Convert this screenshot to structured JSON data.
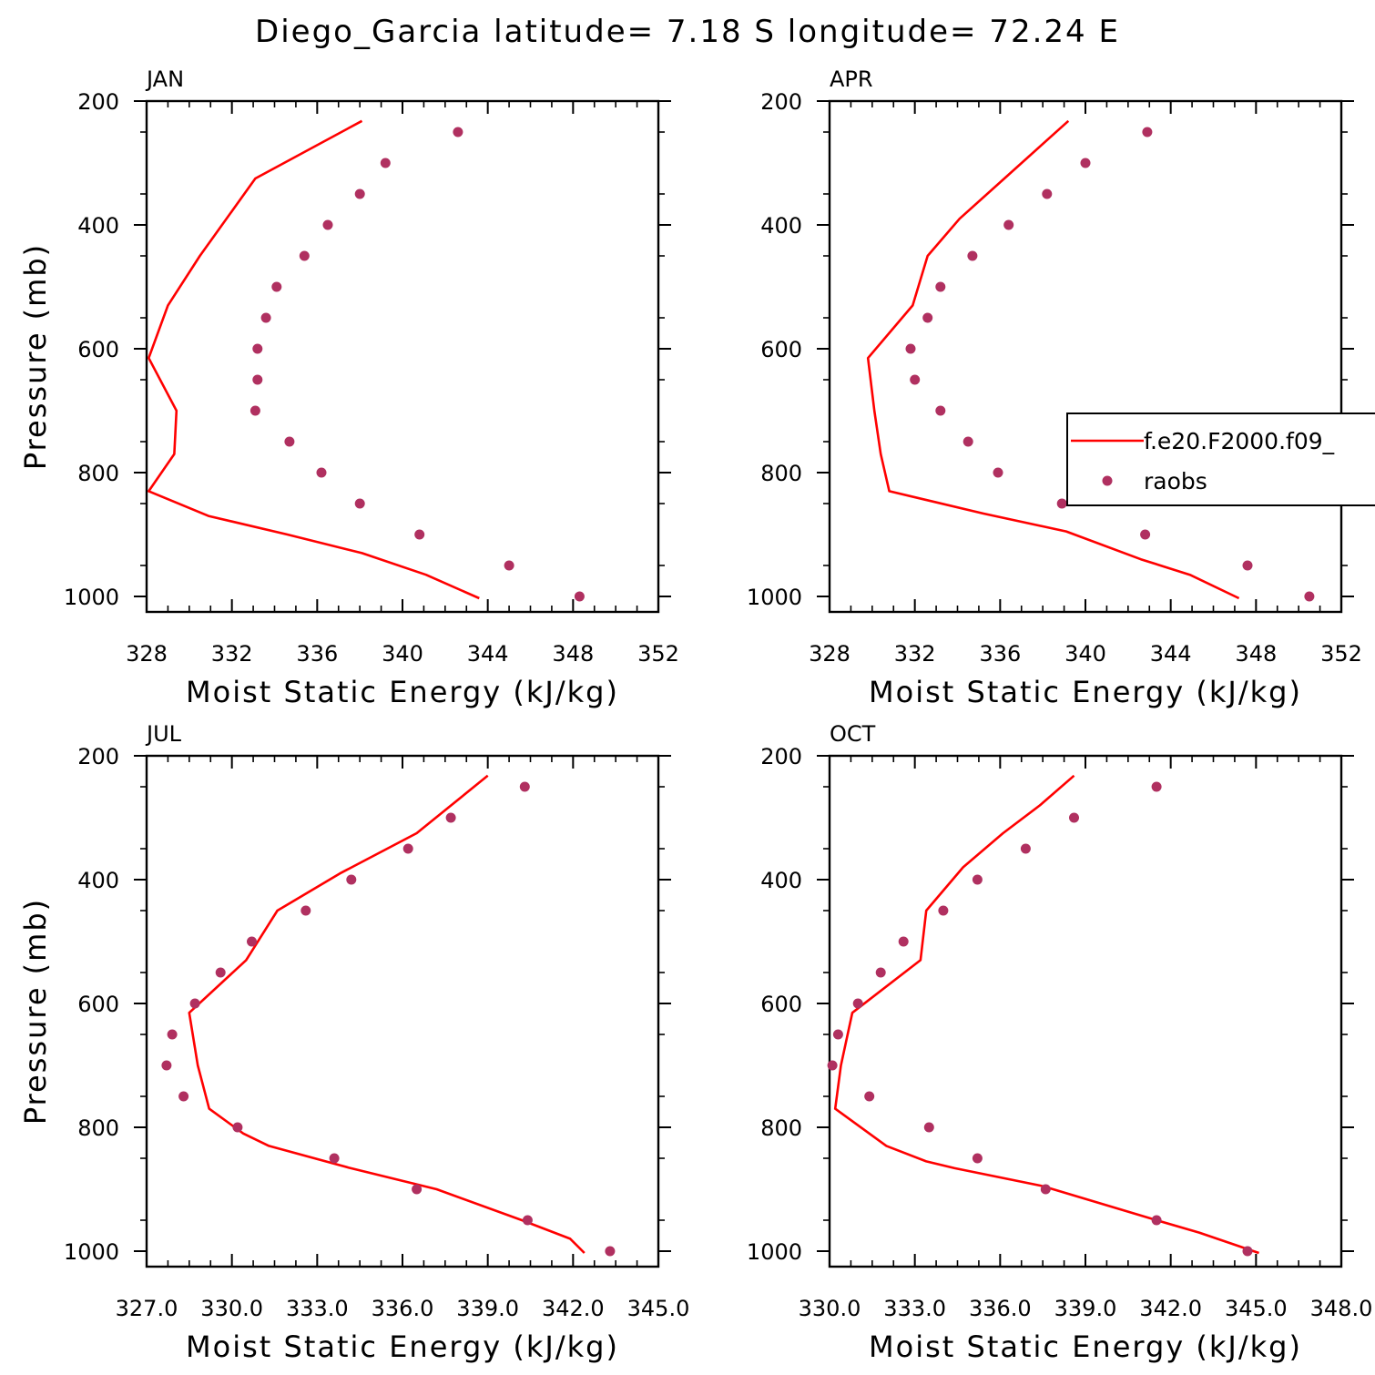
{
  "title": "Diego_Garcia  latitude= 7.18 S longitude= 72.24 E",
  "colors": {
    "model_line": "#ff0000",
    "obs_marker": "#b03060",
    "axis": "#000000"
  },
  "legend": {
    "placement": "right-middle of top-right panel (partially clipped)",
    "entries": [
      {
        "label": "f.e20.F2000.f09_",
        "kind": "line",
        "color": "#ff0000"
      },
      {
        "label": "raobs",
        "kind": "marker",
        "color": "#b03060"
      }
    ]
  },
  "chart_data": [
    {
      "type": "line+scatter",
      "title": "JAN",
      "xlabel": "Moist Static Energy (kJ/kg)",
      "ylabel": "Pressure (mb)",
      "xlim": [
        328,
        352
      ],
      "ylim": [
        200,
        1025
      ],
      "y_inverted": true,
      "xticks": [
        328,
        332,
        336,
        340,
        344,
        348,
        352
      ],
      "xtick_labels": [
        "328",
        "332",
        "336",
        "340",
        "344",
        "348",
        "352"
      ],
      "yticks": [
        200,
        400,
        600,
        800,
        1000
      ],
      "ytick_labels": [
        "200",
        "400",
        "600",
        "800",
        "1000"
      ],
      "series": [
        {
          "name": "f.e20.F2000.f09_",
          "kind": "line",
          "x": [
            338.1,
            333.1,
            330.5,
            329.0,
            328.1,
            329.4,
            329.3,
            328.1,
            330.9,
            334.6,
            338.1,
            341.1,
            343.6
          ],
          "y": [
            232,
            325,
            450,
            530,
            615,
            700,
            770,
            830,
            870,
            900,
            930,
            965,
            1003
          ]
        },
        {
          "name": "raobs",
          "kind": "marker",
          "x": [
            342.6,
            339.2,
            338.0,
            336.5,
            335.4,
            334.1,
            333.6,
            333.2,
            333.2,
            333.1,
            334.7,
            336.2,
            338.0,
            340.8,
            345.0,
            348.3
          ],
          "y": [
            250,
            300,
            350,
            400,
            450,
            500,
            550,
            600,
            650,
            700,
            750,
            800,
            850,
            900,
            950,
            1000
          ]
        }
      ]
    },
    {
      "type": "line+scatter",
      "title": "APR",
      "xlabel": "Moist Static Energy (kJ/kg)",
      "ylabel": "",
      "xlim": [
        328,
        352
      ],
      "ylim": [
        200,
        1025
      ],
      "y_inverted": true,
      "xticks": [
        328,
        332,
        336,
        340,
        344,
        348,
        352
      ],
      "xtick_labels": [
        "328",
        "332",
        "336",
        "340",
        "344",
        "348",
        "352"
      ],
      "yticks": [
        200,
        400,
        600,
        800,
        1000
      ],
      "ytick_labels": [
        "200",
        "400",
        "600",
        "800",
        "1000"
      ],
      "series": [
        {
          "name": "f.e20.F2000.f09_",
          "kind": "line",
          "x": [
            339.2,
            336.2,
            334.1,
            332.6,
            331.9,
            329.8,
            330.1,
            330.4,
            330.8,
            335.2,
            339.1,
            342.6,
            344.9,
            347.2
          ],
          "y": [
            232,
            325,
            390,
            450,
            530,
            615,
            700,
            770,
            830,
            866,
            895,
            940,
            965,
            1003
          ]
        },
        {
          "name": "raobs",
          "kind": "marker",
          "x": [
            342.9,
            340.0,
            338.2,
            336.4,
            334.7,
            333.2,
            332.6,
            331.8,
            332.0,
            333.2,
            334.5,
            335.9,
            338.9,
            342.8,
            347.6,
            350.5
          ],
          "y": [
            250,
            300,
            350,
            400,
            450,
            500,
            550,
            600,
            650,
            700,
            750,
            800,
            850,
            900,
            950,
            1000
          ]
        }
      ]
    },
    {
      "type": "line+scatter",
      "title": "JUL",
      "xlabel": "Moist Static Energy (kJ/kg)",
      "ylabel": "Pressure (mb)",
      "xlim": [
        327.0,
        345.0
      ],
      "ylim": [
        200,
        1025
      ],
      "y_inverted": true,
      "xticks": [
        327.0,
        330.0,
        333.0,
        336.0,
        339.0,
        342.0,
        345.0
      ],
      "xtick_labels": [
        "327.0",
        "330.0",
        "333.0",
        "336.0",
        "339.0",
        "342.0",
        "345.0"
      ],
      "yticks": [
        200,
        400,
        600,
        800,
        1000
      ],
      "ytick_labels": [
        "200",
        "400",
        "600",
        "800",
        "1000"
      ],
      "series": [
        {
          "name": "f.e20.F2000.f09_",
          "kind": "line",
          "x": [
            339.0,
            336.5,
            333.8,
            331.6,
            330.5,
            328.5,
            328.8,
            329.2,
            330.4,
            331.3,
            334.1,
            337.2,
            340.2,
            341.9,
            342.4
          ],
          "y": [
            232,
            325,
            390,
            450,
            530,
            615,
            700,
            770,
            810,
            830,
            865,
            900,
            950,
            980,
            1003
          ]
        },
        {
          "name": "raobs",
          "kind": "marker",
          "x": [
            340.3,
            337.7,
            336.2,
            334.2,
            332.6,
            330.7,
            329.6,
            328.7,
            327.9,
            327.7,
            328.3,
            330.2,
            333.6,
            336.5,
            340.4,
            343.3
          ],
          "y": [
            250,
            300,
            350,
            400,
            450,
            500,
            550,
            600,
            650,
            700,
            750,
            800,
            850,
            900,
            950,
            1000
          ]
        }
      ]
    },
    {
      "type": "line+scatter",
      "title": "OCT",
      "xlabel": "Moist Static Energy (kJ/kg)",
      "ylabel": "",
      "xlim": [
        330.0,
        348.0
      ],
      "ylim": [
        200,
        1025
      ],
      "y_inverted": true,
      "xticks": [
        330.0,
        333.0,
        336.0,
        339.0,
        342.0,
        345.0,
        348.0
      ],
      "xtick_labels": [
        "330.0",
        "333.0",
        "336.0",
        "339.0",
        "342.0",
        "345.0",
        "348.0"
      ],
      "yticks": [
        200,
        400,
        600,
        800,
        1000
      ],
      "ytick_labels": [
        "200",
        "400",
        "600",
        "800",
        "1000"
      ],
      "series": [
        {
          "name": "f.e20.F2000.f09_",
          "kind": "line",
          "x": [
            338.6,
            337.4,
            336.1,
            334.7,
            333.4,
            333.2,
            330.8,
            330.4,
            330.2,
            332.0,
            333.4,
            334.4,
            337.5,
            341.5,
            343.0,
            345.1
          ],
          "y": [
            232,
            280,
            325,
            380,
            450,
            530,
            615,
            700,
            770,
            830,
            855,
            866,
            895,
            950,
            970,
            1003
          ]
        },
        {
          "name": "raobs",
          "kind": "marker",
          "x": [
            341.5,
            338.6,
            336.9,
            335.2,
            334.0,
            332.6,
            331.8,
            331.0,
            330.3,
            330.1,
            331.4,
            333.5,
            335.2,
            337.6,
            341.5,
            344.7
          ],
          "y": [
            250,
            300,
            350,
            400,
            450,
            500,
            550,
            600,
            650,
            700,
            750,
            800,
            850,
            900,
            950,
            1000
          ]
        }
      ]
    }
  ]
}
